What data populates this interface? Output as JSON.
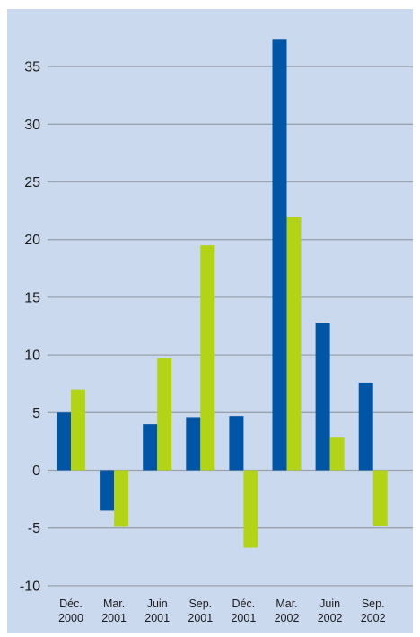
{
  "colors": {
    "background": "#cbd9ee",
    "gridline": "#9aa3ad",
    "series_a": "#0055a5",
    "series_b": "#b3d316"
  },
  "chart_data": {
    "type": "bar",
    "categories": [
      [
        "Déc.",
        "2000"
      ],
      [
        "Mar.",
        "2001"
      ],
      [
        "Juin",
        "2001"
      ],
      [
        "Sep.",
        "2001"
      ],
      [
        "Déc.",
        "2001"
      ],
      [
        "Mar.",
        "2002"
      ],
      [
        "Juin",
        "2002"
      ],
      [
        "Sep.",
        "2002"
      ]
    ],
    "series": [
      {
        "values": [
          5.0,
          -3.5,
          4.0,
          4.6,
          4.7,
          37.4,
          12.8,
          7.6
        ]
      },
      {
        "values": [
          7.0,
          -4.9,
          9.7,
          19.5,
          -6.7,
          22.0,
          2.9,
          -4.8
        ]
      }
    ],
    "yticks": [
      "-10",
      "-5",
      "0",
      "5",
      "10",
      "15",
      "20",
      "25",
      "30",
      "35"
    ],
    "ylim": [
      -10,
      40
    ],
    "grid": true,
    "title": "",
    "xlabel": "",
    "ylabel": ""
  }
}
